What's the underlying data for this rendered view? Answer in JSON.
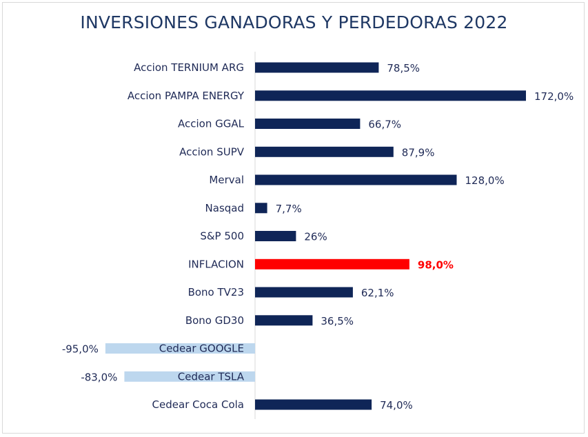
{
  "chart_data": {
    "type": "bar",
    "orientation": "horizontal",
    "title": "INVERSIONES GANADORAS Y PERDEDORAS 2022",
    "categories": [
      "Accion TERNIUM ARG",
      "Accion PAMPA ENERGY",
      "Accion GGAL",
      "Accion SUPV",
      "Merval",
      "Nasqad",
      "S&P 500",
      "INFLACION",
      "Bono TV23",
      "Bono GD30",
      "Cedear GOOGLE",
      "Cedear TSLA",
      "Cedear Coca Cola"
    ],
    "values": [
      78.5,
      172.0,
      66.7,
      87.9,
      128.0,
      7.7,
      26,
      98.0,
      62.1,
      36.5,
      -95.0,
      -83.0,
      74.0
    ],
    "value_labels": [
      "78,5%",
      "172,0%",
      "66,7%",
      "87,9%",
      "128,0%",
      "7,7%",
      "26%",
      "98,0%",
      "62,1%",
      "36,5%",
      "-95,0%",
      "-83,0%",
      "74,0%"
    ],
    "highlight_index": 7,
    "xlim": [
      -95,
      172
    ],
    "grid": false,
    "legend": "none",
    "colors": {
      "positive": "#0f2557",
      "negative": "#bdd7ee",
      "highlight": "#ff0000",
      "axis": "#d9d9d9",
      "title": "#1f3864"
    }
  }
}
